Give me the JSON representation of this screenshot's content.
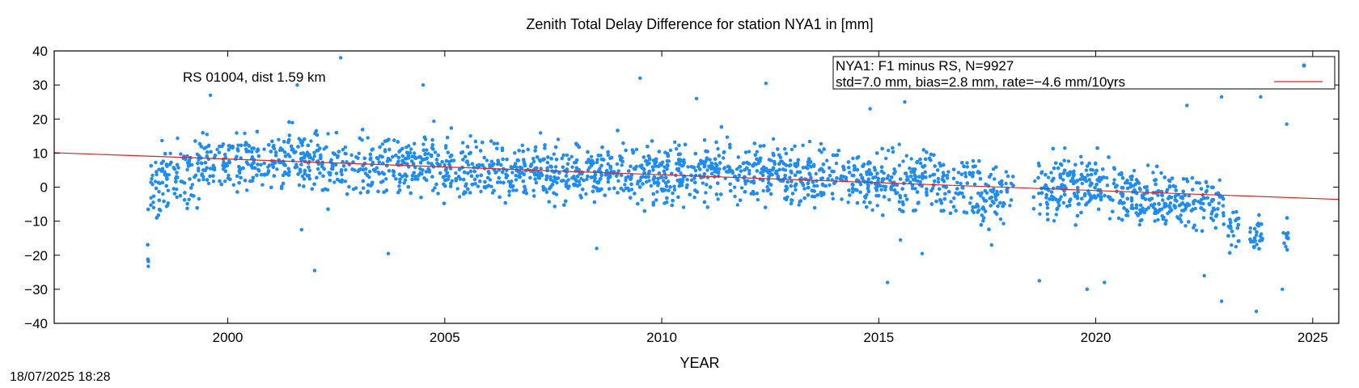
{
  "chart_data": {
    "type": "scatter",
    "title": "Zenith Total Delay Difference for station NYA1 in [mm]",
    "xlabel": "YEAR",
    "ylabel": "",
    "xlim": [
      1996.0,
      2025.6
    ],
    "ylim": [
      -40,
      40
    ],
    "xticks": [
      2000,
      2005,
      2010,
      2015,
      2020,
      2025
    ],
    "yticks": [
      -40,
      -30,
      -20,
      -10,
      0,
      10,
      20,
      30,
      40
    ],
    "annotation": "RS 01004, dist 1.59 km",
    "legend": {
      "placement": "top-right",
      "entries": [
        "NYA1: F1 minus RS, N=9927",
        "std=7.0 mm, bias=2.8 mm, rate=−4.6 mm/10yrs"
      ]
    },
    "series": [
      {
        "name": "NYA1: F1 minus RS, N=9927",
        "color": "#1e8cf0",
        "points": [
          [
            1998.2,
            0.5
          ],
          [
            1998.5,
            2.0
          ],
          [
            1999.0,
            3.0
          ],
          [
            1999.5,
            6.0
          ],
          [
            2000.0,
            7.5
          ],
          [
            2000.5,
            8.0
          ],
          [
            2001.0,
            7.5
          ],
          [
            2002.0,
            7.0
          ],
          [
            2003.0,
            6.5
          ],
          [
            2004.0,
            6.5
          ],
          [
            2004.5,
            7.0
          ],
          [
            2005.0,
            5.5
          ],
          [
            2006.0,
            5.0
          ],
          [
            2007.0,
            4.5
          ],
          [
            2008.0,
            4.0
          ],
          [
            2009.0,
            4.0
          ],
          [
            2010.0,
            4.0
          ],
          [
            2011.0,
            4.0
          ],
          [
            2012.0,
            4.5
          ],
          [
            2013.0,
            3.5
          ],
          [
            2014.0,
            4.0
          ],
          [
            2015.0,
            2.0
          ],
          [
            2016.0,
            1.5
          ],
          [
            2017.0,
            0.5
          ],
          [
            2017.6,
            -3.0
          ],
          [
            2018.0,
            1.0
          ],
          [
            2018.6,
            0.0
          ],
          [
            2019.0,
            0.5
          ],
          [
            2019.5,
            0.0
          ],
          [
            2020.0,
            1.5
          ],
          [
            2020.5,
            -1.0
          ],
          [
            2021.0,
            -2.0
          ],
          [
            2021.5,
            -3.0
          ],
          [
            2022.0,
            -3.5
          ],
          [
            2022.5,
            -4.0
          ],
          [
            2022.9,
            -3.5
          ],
          [
            2023.2,
            -13.5
          ],
          [
            2023.7,
            -16.0
          ],
          [
            2024.0,
            -13.0
          ],
          [
            2024.4,
            -15.5
          ]
        ],
        "outliers": [
          [
            2002.6,
            38
          ],
          [
            2009.5,
            32
          ],
          [
            2001.6,
            30
          ],
          [
            2012.4,
            30.5
          ],
          [
            2004.5,
            30
          ],
          [
            2010.8,
            26
          ],
          [
            1999.6,
            27
          ],
          [
            2022.9,
            26.5
          ],
          [
            2023.8,
            26.5
          ],
          [
            2015.6,
            25
          ],
          [
            2022.1,
            24
          ],
          [
            2014.8,
            23
          ],
          [
            2001.7,
            -12.5
          ],
          [
            2002.0,
            -24.5
          ],
          [
            2003.7,
            -19.5
          ],
          [
            2008.5,
            -18
          ],
          [
            2015.5,
            -15.5
          ],
          [
            2016.0,
            -19.5
          ],
          [
            2017.6,
            -17
          ],
          [
            2018.7,
            -27.5
          ],
          [
            2015.2,
            -28
          ],
          [
            2019.8,
            -30
          ],
          [
            2020.2,
            -28
          ],
          [
            2022.5,
            -26
          ],
          [
            2022.9,
            -33.5
          ],
          [
            2023.7,
            -36.5
          ],
          [
            2024.3,
            -30
          ],
          [
            2024.4,
            18.5
          ]
        ]
      },
      {
        "name": "",
        "type": "line",
        "color": "#e02020",
        "x": [
          1996.0,
          2025.6
        ],
        "y": [
          10.1,
          -3.6
        ]
      }
    ]
  },
  "timestamp": "18/07/2025 18:28"
}
